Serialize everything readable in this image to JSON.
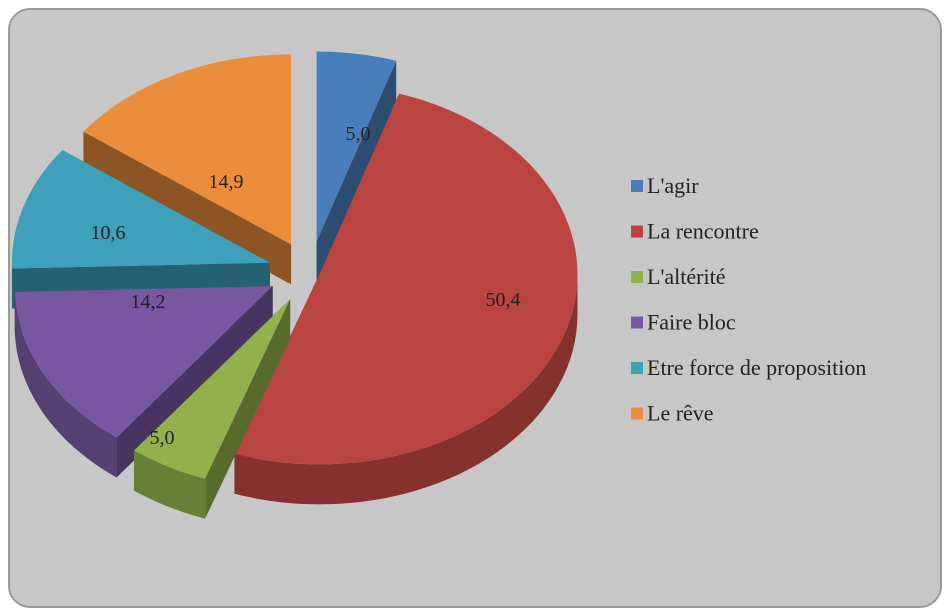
{
  "chart_data": {
    "type": "pie",
    "title": "",
    "style": "3d-exploded",
    "legend_position": "right",
    "categories": [
      "L'agir",
      "La rencontre",
      "L'altérité",
      "Faire bloc",
      "Etre force de proposition",
      "Le rêve"
    ],
    "values": [
      5.0,
      50.4,
      5.0,
      14.2,
      10.6,
      14.9
    ],
    "labels": [
      "5,0",
      "50,4",
      "5,0",
      "14,2",
      "10,6",
      "14,9"
    ],
    "colors": [
      "#4a7ebb",
      "#b94440",
      "#91b24a",
      "#7657a0",
      "#3ea1bb",
      "#eb8e3b"
    ],
    "legend": [
      {
        "label": "L'agir",
        "color": "#4a7ebb"
      },
      {
        "label": "La rencontre",
        "color": "#b94440"
      },
      {
        "label": "L'altérité",
        "color": "#91b24a"
      },
      {
        "label": "Faire bloc",
        "color": "#7657a0"
      },
      {
        "label": "Etre force de proposition",
        "color": "#3ea1bb"
      },
      {
        "label": "Le rêve",
        "color": "#eb8e3b"
      }
    ]
  }
}
